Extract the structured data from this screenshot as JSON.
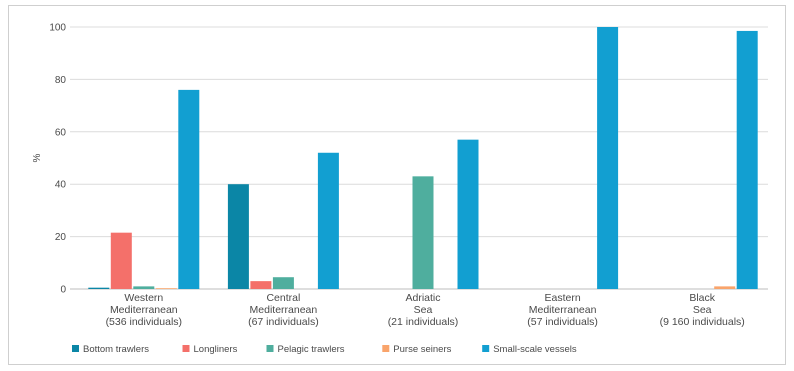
{
  "chart_data": {
    "type": "bar",
    "ylabel": "%",
    "ylim": [
      0,
      100
    ],
    "yticks": [
      0,
      20,
      40,
      60,
      80,
      100
    ],
    "grid": "horizontal",
    "legend_position": "bottom-left",
    "categories": [
      [
        "Western",
        "Mediterranean",
        "(536 individuals)"
      ],
      [
        "Central",
        "Mediterranean",
        "(67 individuals)"
      ],
      [
        "Adriatic",
        "Sea",
        "(21 individuals)"
      ],
      [
        "Eastern",
        "Mediterranean",
        "(57 individuals)"
      ],
      [
        "Black",
        "Sea",
        "(9 160 individuals)"
      ]
    ],
    "series": [
      {
        "name": "Bottom trawlers",
        "color": "#0b86a6",
        "values": [
          0.5,
          40,
          0,
          0,
          0
        ]
      },
      {
        "name": "Longliners",
        "color": "#f4706a",
        "values": [
          21.5,
          3,
          0,
          0,
          0
        ]
      },
      {
        "name": "Pelagic trawlers",
        "color": "#4fae9e",
        "values": [
          1,
          4.5,
          43,
          0,
          0
        ]
      },
      {
        "name": "Purse seiners",
        "color": "#f9a46b",
        "values": [
          0.3,
          0,
          0,
          0,
          1
        ]
      },
      {
        "name": "Small-scale vessels",
        "color": "#129fd1",
        "values": [
          76,
          52,
          57,
          100,
          98.5
        ]
      }
    ]
  }
}
